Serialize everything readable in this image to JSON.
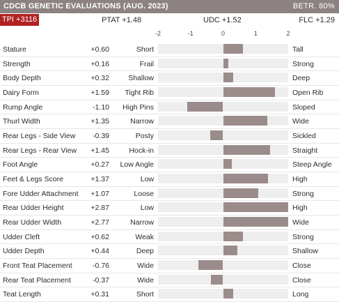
{
  "header": {
    "title": "CDCB GENETIC EVALUATIONS (AUG. 2023)",
    "reliability": "BETR. 80%"
  },
  "summary": {
    "tpi": "TPI +3116",
    "ptat": "PTAT +1.48",
    "udc": "UDC +1.52",
    "flc": "FLC +1.29"
  },
  "axis": {
    "ticks": [
      "-2",
      "-1",
      "0",
      "1",
      "2"
    ],
    "min": -2,
    "max": 2
  },
  "colors": {
    "header_bg": "#8c8282",
    "tpi_bg": "#b02222",
    "bar": "#9b8c8c",
    "track": "#eeeeee"
  },
  "traits": [
    {
      "name": "Stature",
      "value": "+0.60",
      "num": 0.6,
      "left": "Short",
      "right": "Tall"
    },
    {
      "name": "Strength",
      "value": "+0.16",
      "num": 0.16,
      "left": "Frail",
      "right": "Strong"
    },
    {
      "name": "Body Depth",
      "value": "+0.32",
      "num": 0.32,
      "left": "Shallow",
      "right": "Deep"
    },
    {
      "name": "Dairy Form",
      "value": "+1.59",
      "num": 1.59,
      "left": "Tight Rib",
      "right": "Open Rib"
    },
    {
      "name": "Rump Angle",
      "value": "-1.10",
      "num": -1.1,
      "left": "High Pins",
      "right": "Sloped"
    },
    {
      "name": "Thurl Width",
      "value": "+1.35",
      "num": 1.35,
      "left": "Narrow",
      "right": "Wide"
    },
    {
      "name": "Rear Legs - Side View",
      "value": "-0.39",
      "num": -0.39,
      "left": "Posty",
      "right": "Sickled"
    },
    {
      "name": "Rear Legs - Rear View",
      "value": "+1.45",
      "num": 1.45,
      "left": "Hock-in",
      "right": "Straight"
    },
    {
      "name": "Foot Angle",
      "value": "+0.27",
      "num": 0.27,
      "left": "Low Angle",
      "right": "Steep Angle"
    },
    {
      "name": "Feet & Legs Score",
      "value": "+1.37",
      "num": 1.37,
      "left": "Low",
      "right": "High"
    },
    {
      "name": "Fore Udder Attachment",
      "value": "+1.07",
      "num": 1.07,
      "left": "Loose",
      "right": "Strong"
    },
    {
      "name": "Rear Udder Height",
      "value": "+2.87",
      "num": 2.87,
      "left": "Low",
      "right": "High"
    },
    {
      "name": "Rear Udder Width",
      "value": "+2.77",
      "num": 2.77,
      "left": "Narrow",
      "right": "Wide"
    },
    {
      "name": "Udder Cleft",
      "value": "+0.62",
      "num": 0.62,
      "left": "Weak",
      "right": "Strong"
    },
    {
      "name": "Udder Depth",
      "value": "+0.44",
      "num": 0.44,
      "left": "Deep",
      "right": "Shallow"
    },
    {
      "name": "Front Teat Placement",
      "value": "-0.76",
      "num": -0.76,
      "left": "Wide",
      "right": "Close"
    },
    {
      "name": "Rear Teat Placement",
      "value": "-0.37",
      "num": -0.37,
      "left": "Wide",
      "right": "Close"
    },
    {
      "name": "Teat Length",
      "value": "+0.31",
      "num": 0.31,
      "left": "Short",
      "right": "Long"
    }
  ]
}
